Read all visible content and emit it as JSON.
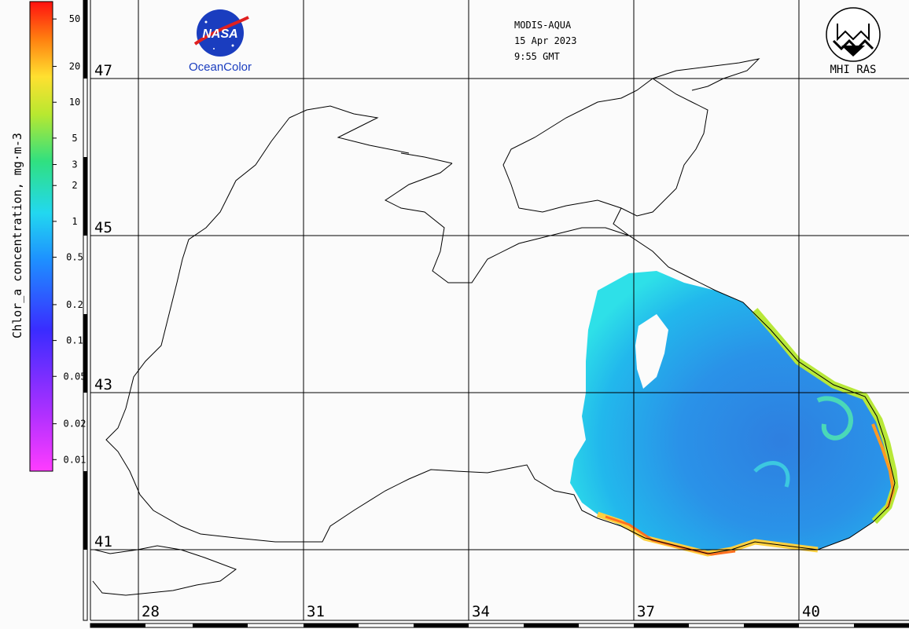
{
  "header": {
    "satellite": "MODIS-AQUA",
    "date": "15 Apr 2023",
    "time": "9:55 GMT"
  },
  "logos": {
    "nasa_text": "NASA",
    "nasa_caption": "OceanColor",
    "mhi_caption": "MHI RAS"
  },
  "colorbar": {
    "label": "Chlor_a concentration, mg·m-3",
    "ticks": [
      "50",
      "20",
      "10",
      "5",
      "3",
      "2",
      "1",
      "0.5",
      "0.2",
      "0.1",
      "0.05",
      "0.02",
      "0.01"
    ],
    "scale": "log"
  },
  "grid": {
    "latitudes": [
      "47",
      "45",
      "43",
      "41"
    ],
    "longitudes": [
      "28",
      "31",
      "34",
      "37",
      "40"
    ]
  },
  "colors": {
    "coast": "#000000",
    "grid": "#000000",
    "low_chl": "#3a8de0",
    "mid_chl": "#2ec6e6",
    "high_chl": "#f0a020"
  }
}
